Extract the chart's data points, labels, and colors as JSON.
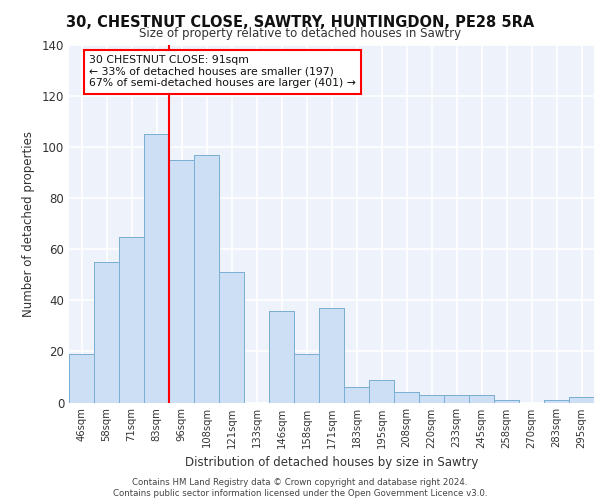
{
  "title1": "30, CHESTNUT CLOSE, SAWTRY, HUNTINGDON, PE28 5RA",
  "title2": "Size of property relative to detached houses in Sawtry",
  "xlabel": "Distribution of detached houses by size in Sawtry",
  "ylabel": "Number of detached properties",
  "bar_labels": [
    "46sqm",
    "58sqm",
    "71sqm",
    "83sqm",
    "96sqm",
    "108sqm",
    "121sqm",
    "133sqm",
    "146sqm",
    "158sqm",
    "171sqm",
    "183sqm",
    "195sqm",
    "208sqm",
    "220sqm",
    "233sqm",
    "245sqm",
    "258sqm",
    "270sqm",
    "283sqm",
    "295sqm"
  ],
  "bar_values": [
    19,
    55,
    65,
    105,
    95,
    97,
    51,
    0,
    36,
    19,
    37,
    6,
    9,
    4,
    3,
    3,
    3,
    1,
    0,
    1,
    2
  ],
  "bar_color": "#ccdff5",
  "bar_edge_color": "#7bafd4",
  "annotation_text": "30 CHESTNUT CLOSE: 91sqm\n← 33% of detached houses are smaller (197)\n67% of semi-detached houses are larger (401) →",
  "annotation_box_color": "white",
  "annotation_box_edge_color": "red",
  "vline_color": "red",
  "footer": "Contains HM Land Registry data © Crown copyright and database right 2024.\nContains public sector information licensed under the Open Government Licence v3.0.",
  "ylim": [
    0,
    140
  ],
  "yticks": [
    0,
    20,
    40,
    60,
    80,
    100,
    120,
    140
  ],
  "background_color": "#eef2fb",
  "grid_color": "white"
}
